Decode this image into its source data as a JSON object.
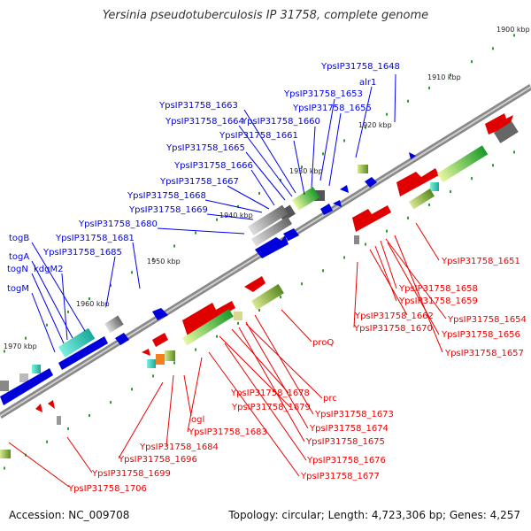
{
  "title": "Yersinia pseudotuberculosis IP 31758, complete genome",
  "accession": "Accession: NC_009708",
  "topology": "Topology: circular; Length: 4,723,306 bp; Genes: 4,257",
  "colors": {
    "forward": "#0000ee",
    "reverse": "#ee0000",
    "backbone": "#777777",
    "tick": "#339933"
  },
  "kbp_ticks": [
    "1900 kbp",
    "1910 kbp",
    "1920 kbp",
    "1930 kbp",
    "1940 kbp",
    "1950 kbp",
    "1960 kbp",
    "1970 kbp"
  ],
  "forward_labels": [
    "YpsIP31758_1648",
    "alr1",
    "YpsIP31758_1653",
    "YpsIP31758_1655",
    "YpsIP31758_1663",
    "YpsIP31758_1664",
    "YpsIP31758_1660",
    "YpsIP31758_1661",
    "YpsIP31758_1665",
    "YpsIP31758_1666",
    "YpsIP31758_1667",
    "YpsIP31758_1668",
    "YpsIP31758_1669",
    "YpsIP31758_1680",
    "YpsIP31758_1681",
    "YpsIP31758_1685",
    "togB",
    "togA",
    "togN",
    "kdgM2",
    "togM"
  ],
  "reverse_labels": [
    "YpsIP31758_1651",
    "YpsIP31758_1658",
    "YpsIP31758_1659",
    "YpsIP31758_1662",
    "YpsIP31758_1670",
    "YpsIP31758_1654",
    "YpsIP31758_1656",
    "YpsIP31758_1657",
    "proQ",
    "prc",
    "YpsIP31758_1678",
    "YpsIP31758_1679",
    "YpsIP31758_1673",
    "YpsIP31758_1674",
    "YpsIP31758_1675",
    "YpsIP31758_1676",
    "YpsIP31758_1677",
    "ogl",
    "YpsIP31758_1683",
    "YpsIP31758_1684",
    "YpsIP31758_1696",
    "YpsIP31758_1699",
    "YpsIP31758_1706"
  ]
}
